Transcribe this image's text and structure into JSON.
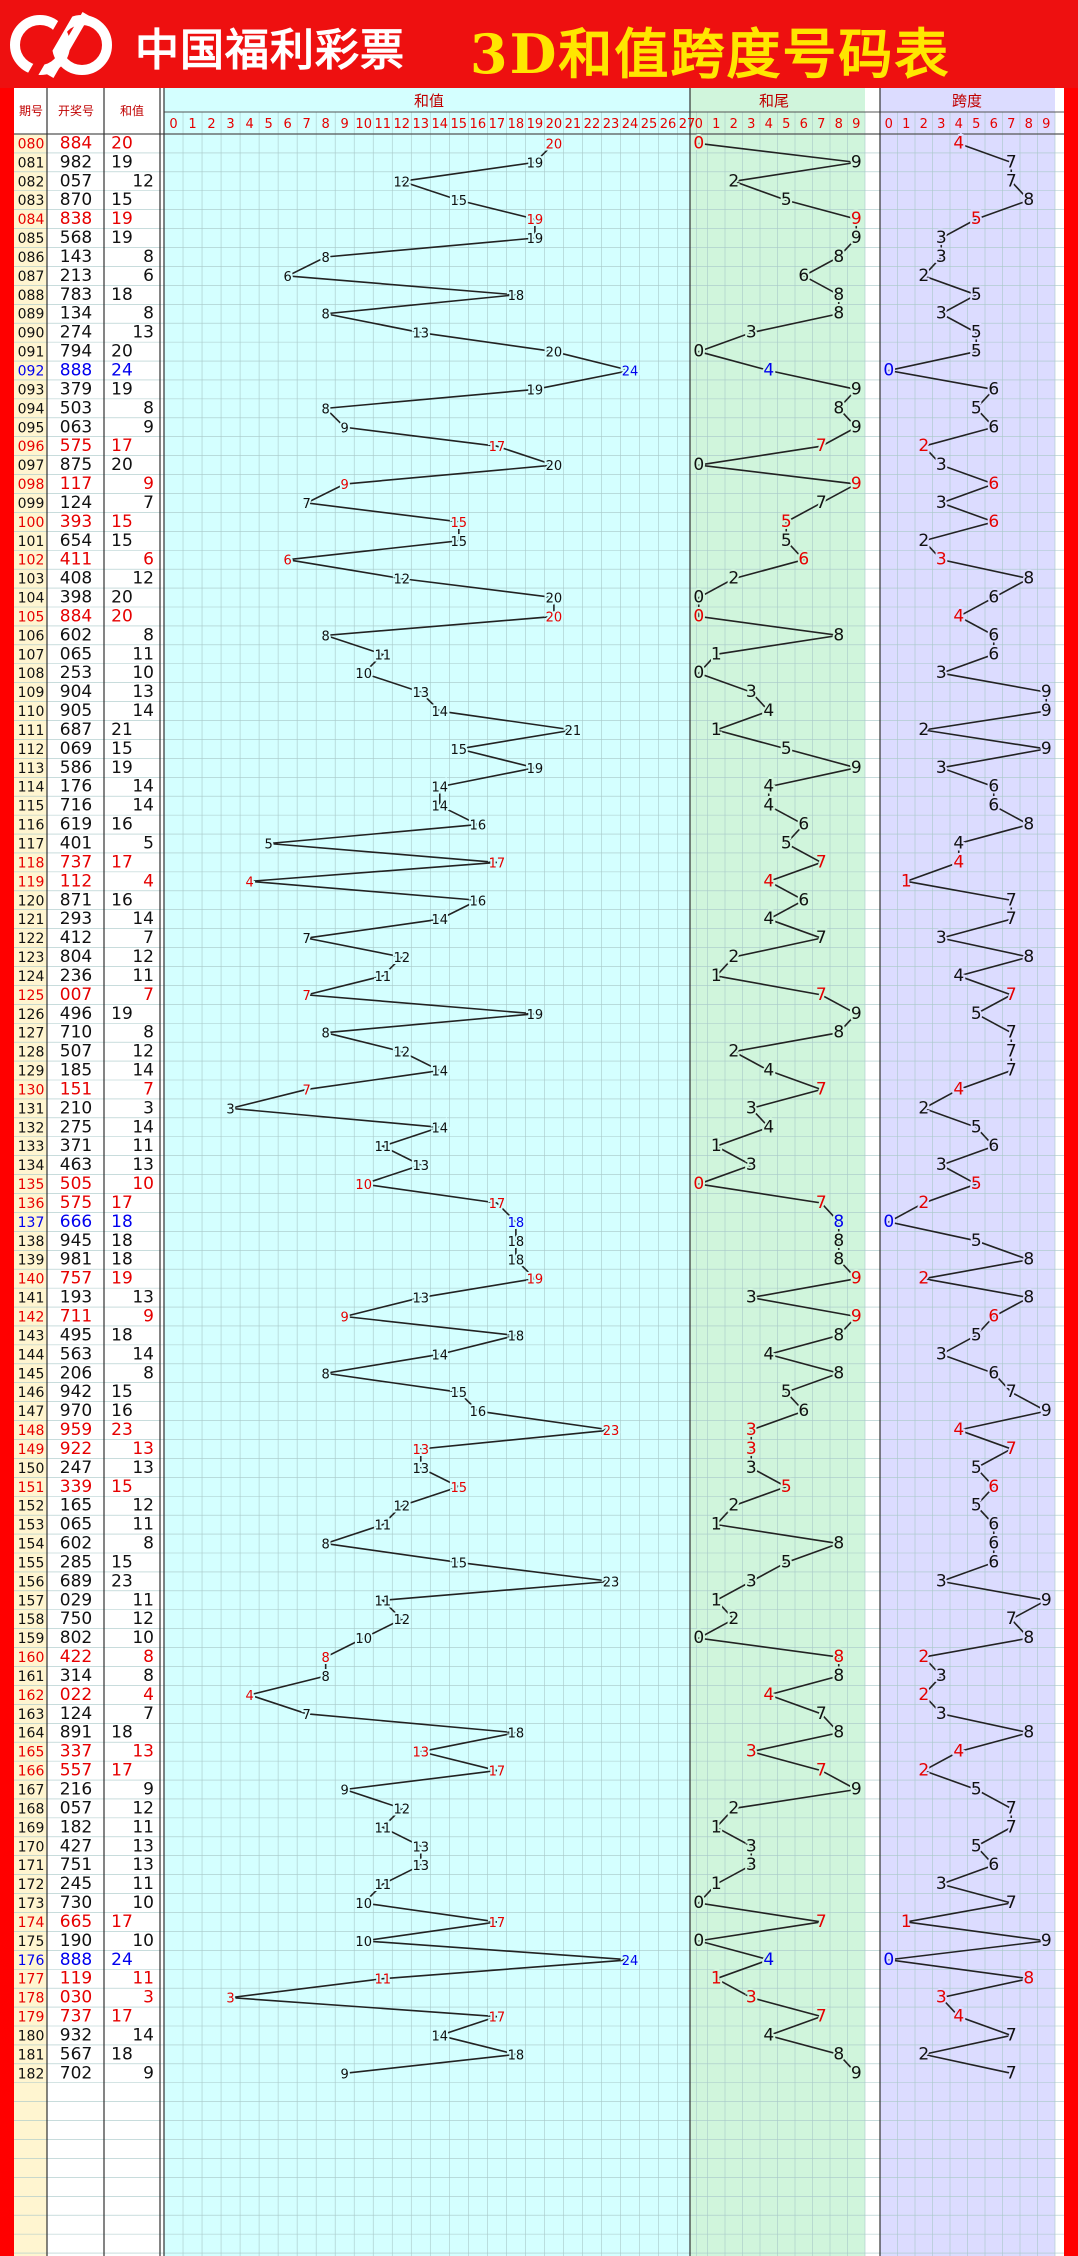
{
  "header": {
    "brand": "中国福利彩票",
    "title": "3D和值跨度号码表"
  },
  "columns": {
    "period": "期号",
    "draw": "开奖号",
    "sum": "和值",
    "sum_chart": "和值",
    "tail_chart": "和尾",
    "span_chart": "跨度"
  },
  "colors": {
    "red": "#e60000",
    "blue": "#0000ee",
    "black": "#111111",
    "period_bg": "#fff5d0",
    "draw_bg": "#ffffff",
    "sum_bg": "#d4ffff",
    "tail_bg": "#d0f5dc",
    "span_bg": "#dcdcff",
    "grid": "#a8c8c8"
  },
  "chart_data": {
    "type": "table",
    "sum_axis": [
      0,
      27
    ],
    "tail_axis": [
      0,
      9
    ],
    "span_axis": [
      0,
      9
    ],
    "rows": [
      {
        "p": "080",
        "n": "884",
        "s": 20,
        "t": 0,
        "k": 4,
        "c": "r"
      },
      {
        "p": "081",
        "n": "982",
        "s": 19,
        "t": 9,
        "k": 7,
        "c": "k"
      },
      {
        "p": "082",
        "n": "057",
        "s": 12,
        "t": 2,
        "k": 7,
        "c": "k"
      },
      {
        "p": "083",
        "n": "870",
        "s": 15,
        "t": 5,
        "k": 8,
        "c": "k"
      },
      {
        "p": "084",
        "n": "838",
        "s": 19,
        "t": 9,
        "k": 5,
        "c": "r"
      },
      {
        "p": "085",
        "n": "568",
        "s": 19,
        "t": 9,
        "k": 3,
        "c": "k"
      },
      {
        "p": "086",
        "n": "143",
        "s": 8,
        "t": 8,
        "k": 3,
        "c": "k"
      },
      {
        "p": "087",
        "n": "213",
        "s": 6,
        "t": 6,
        "k": 2,
        "c": "k"
      },
      {
        "p": "088",
        "n": "783",
        "s": 18,
        "t": 8,
        "k": 5,
        "c": "k"
      },
      {
        "p": "089",
        "n": "134",
        "s": 8,
        "t": 8,
        "k": 3,
        "c": "k"
      },
      {
        "p": "090",
        "n": "274",
        "s": 13,
        "t": 3,
        "k": 5,
        "c": "k"
      },
      {
        "p": "091",
        "n": "794",
        "s": 20,
        "t": 0,
        "k": 5,
        "c": "k"
      },
      {
        "p": "092",
        "n": "888",
        "s": 24,
        "t": 4,
        "k": 0,
        "c": "b"
      },
      {
        "p": "093",
        "n": "379",
        "s": 19,
        "t": 9,
        "k": 6,
        "c": "k"
      },
      {
        "p": "094",
        "n": "503",
        "s": 8,
        "t": 8,
        "k": 5,
        "c": "k"
      },
      {
        "p": "095",
        "n": "063",
        "s": 9,
        "t": 9,
        "k": 6,
        "c": "k"
      },
      {
        "p": "096",
        "n": "575",
        "s": 17,
        "t": 7,
        "k": 2,
        "c": "r"
      },
      {
        "p": "097",
        "n": "875",
        "s": 20,
        "t": 0,
        "k": 3,
        "c": "k"
      },
      {
        "p": "098",
        "n": "117",
        "s": 9,
        "t": 9,
        "k": 6,
        "c": "r"
      },
      {
        "p": "099",
        "n": "124",
        "s": 7,
        "t": 7,
        "k": 3,
        "c": "k"
      },
      {
        "p": "100",
        "n": "393",
        "s": 15,
        "t": 5,
        "k": 6,
        "c": "r"
      },
      {
        "p": "101",
        "n": "654",
        "s": 15,
        "t": 5,
        "k": 2,
        "c": "k"
      },
      {
        "p": "102",
        "n": "411",
        "s": 6,
        "t": 6,
        "k": 3,
        "c": "r"
      },
      {
        "p": "103",
        "n": "408",
        "s": 12,
        "t": 2,
        "k": 8,
        "c": "k"
      },
      {
        "p": "104",
        "n": "398",
        "s": 20,
        "t": 0,
        "k": 6,
        "c": "k"
      },
      {
        "p": "105",
        "n": "884",
        "s": 20,
        "t": 0,
        "k": 4,
        "c": "r"
      },
      {
        "p": "106",
        "n": "602",
        "s": 8,
        "t": 8,
        "k": 6,
        "c": "k"
      },
      {
        "p": "107",
        "n": "065",
        "s": 11,
        "t": 1,
        "k": 6,
        "c": "k"
      },
      {
        "p": "108",
        "n": "253",
        "s": 10,
        "t": 0,
        "k": 3,
        "c": "k"
      },
      {
        "p": "109",
        "n": "904",
        "s": 13,
        "t": 3,
        "k": 9,
        "c": "k"
      },
      {
        "p": "110",
        "n": "905",
        "s": 14,
        "t": 4,
        "k": 9,
        "c": "k"
      },
      {
        "p": "111",
        "n": "687",
        "s": 21,
        "t": 1,
        "k": 2,
        "c": "k"
      },
      {
        "p": "112",
        "n": "069",
        "s": 15,
        "t": 5,
        "k": 9,
        "c": "k"
      },
      {
        "p": "113",
        "n": "586",
        "s": 19,
        "t": 9,
        "k": 3,
        "c": "k"
      },
      {
        "p": "114",
        "n": "176",
        "s": 14,
        "t": 4,
        "k": 6,
        "c": "k"
      },
      {
        "p": "115",
        "n": "716",
        "s": 14,
        "t": 4,
        "k": 6,
        "c": "k"
      },
      {
        "p": "116",
        "n": "619",
        "s": 16,
        "t": 6,
        "k": 8,
        "c": "k"
      },
      {
        "p": "117",
        "n": "401",
        "s": 5,
        "t": 5,
        "k": 4,
        "c": "k"
      },
      {
        "p": "118",
        "n": "737",
        "s": 17,
        "t": 7,
        "k": 4,
        "c": "r"
      },
      {
        "p": "119",
        "n": "112",
        "s": 4,
        "t": 4,
        "k": 1,
        "c": "r"
      },
      {
        "p": "120",
        "n": "871",
        "s": 16,
        "t": 6,
        "k": 7,
        "c": "k"
      },
      {
        "p": "121",
        "n": "293",
        "s": 14,
        "t": 4,
        "k": 7,
        "c": "k"
      },
      {
        "p": "122",
        "n": "412",
        "s": 7,
        "t": 7,
        "k": 3,
        "c": "k"
      },
      {
        "p": "123",
        "n": "804",
        "s": 12,
        "t": 2,
        "k": 8,
        "c": "k"
      },
      {
        "p": "124",
        "n": "236",
        "s": 11,
        "t": 1,
        "k": 4,
        "c": "k"
      },
      {
        "p": "125",
        "n": "007",
        "s": 7,
        "t": 7,
        "k": 7,
        "c": "r"
      },
      {
        "p": "126",
        "n": "496",
        "s": 19,
        "t": 9,
        "k": 5,
        "c": "k"
      },
      {
        "p": "127",
        "n": "710",
        "s": 8,
        "t": 8,
        "k": 7,
        "c": "k"
      },
      {
        "p": "128",
        "n": "507",
        "s": 12,
        "t": 2,
        "k": 7,
        "c": "k"
      },
      {
        "p": "129",
        "n": "185",
        "s": 14,
        "t": 4,
        "k": 7,
        "c": "k"
      },
      {
        "p": "130",
        "n": "151",
        "s": 7,
        "t": 7,
        "k": 4,
        "c": "r"
      },
      {
        "p": "131",
        "n": "210",
        "s": 3,
        "t": 3,
        "k": 2,
        "c": "k"
      },
      {
        "p": "132",
        "n": "275",
        "s": 14,
        "t": 4,
        "k": 5,
        "c": "k"
      },
      {
        "p": "133",
        "n": "371",
        "s": 11,
        "t": 1,
        "k": 6,
        "c": "k"
      },
      {
        "p": "134",
        "n": "463",
        "s": 13,
        "t": 3,
        "k": 3,
        "c": "k"
      },
      {
        "p": "135",
        "n": "505",
        "s": 10,
        "t": 0,
        "k": 5,
        "c": "r"
      },
      {
        "p": "136",
        "n": "575",
        "s": 17,
        "t": 7,
        "k": 2,
        "c": "r"
      },
      {
        "p": "137",
        "n": "666",
        "s": 18,
        "t": 8,
        "k": 0,
        "c": "b"
      },
      {
        "p": "138",
        "n": "945",
        "s": 18,
        "t": 8,
        "k": 5,
        "c": "k"
      },
      {
        "p": "139",
        "n": "981",
        "s": 18,
        "t": 8,
        "k": 8,
        "c": "k"
      },
      {
        "p": "140",
        "n": "757",
        "s": 19,
        "t": 9,
        "k": 2,
        "c": "r"
      },
      {
        "p": "141",
        "n": "193",
        "s": 13,
        "t": 3,
        "k": 8,
        "c": "k"
      },
      {
        "p": "142",
        "n": "711",
        "s": 9,
        "t": 9,
        "k": 6,
        "c": "r"
      },
      {
        "p": "143",
        "n": "495",
        "s": 18,
        "t": 8,
        "k": 5,
        "c": "k"
      },
      {
        "p": "144",
        "n": "563",
        "s": 14,
        "t": 4,
        "k": 3,
        "c": "k"
      },
      {
        "p": "145",
        "n": "206",
        "s": 8,
        "t": 8,
        "k": 6,
        "c": "k"
      },
      {
        "p": "146",
        "n": "942",
        "s": 15,
        "t": 5,
        "k": 7,
        "c": "k"
      },
      {
        "p": "147",
        "n": "970",
        "s": 16,
        "t": 6,
        "k": 9,
        "c": "k"
      },
      {
        "p": "148",
        "n": "959",
        "s": 23,
        "t": 3,
        "k": 4,
        "c": "r"
      },
      {
        "p": "149",
        "n": "922",
        "s": 13,
        "t": 3,
        "k": 7,
        "c": "r"
      },
      {
        "p": "150",
        "n": "247",
        "s": 13,
        "t": 3,
        "k": 5,
        "c": "k"
      },
      {
        "p": "151",
        "n": "339",
        "s": 15,
        "t": 5,
        "k": 6,
        "c": "r"
      },
      {
        "p": "152",
        "n": "165",
        "s": 12,
        "t": 2,
        "k": 5,
        "c": "k"
      },
      {
        "p": "153",
        "n": "065",
        "s": 11,
        "t": 1,
        "k": 6,
        "c": "k"
      },
      {
        "p": "154",
        "n": "602",
        "s": 8,
        "t": 8,
        "k": 6,
        "c": "k"
      },
      {
        "p": "155",
        "n": "285",
        "s": 15,
        "t": 5,
        "k": 6,
        "c": "k"
      },
      {
        "p": "156",
        "n": "689",
        "s": 23,
        "t": 3,
        "k": 3,
        "c": "k"
      },
      {
        "p": "157",
        "n": "029",
        "s": 11,
        "t": 1,
        "k": 9,
        "c": "k"
      },
      {
        "p": "158",
        "n": "750",
        "s": 12,
        "t": 2,
        "k": 7,
        "c": "k"
      },
      {
        "p": "159",
        "n": "802",
        "s": 10,
        "t": 0,
        "k": 8,
        "c": "k"
      },
      {
        "p": "160",
        "n": "422",
        "s": 8,
        "t": 8,
        "k": 2,
        "c": "r"
      },
      {
        "p": "161",
        "n": "314",
        "s": 8,
        "t": 8,
        "k": 3,
        "c": "k"
      },
      {
        "p": "162",
        "n": "022",
        "s": 4,
        "t": 4,
        "k": 2,
        "c": "r"
      },
      {
        "p": "163",
        "n": "124",
        "s": 7,
        "t": 7,
        "k": 3,
        "c": "k"
      },
      {
        "p": "164",
        "n": "891",
        "s": 18,
        "t": 8,
        "k": 8,
        "c": "k"
      },
      {
        "p": "165",
        "n": "337",
        "s": 13,
        "t": 3,
        "k": 4,
        "c": "r"
      },
      {
        "p": "166",
        "n": "557",
        "s": 17,
        "t": 7,
        "k": 2,
        "c": "r"
      },
      {
        "p": "167",
        "n": "216",
        "s": 9,
        "t": 9,
        "k": 5,
        "c": "k"
      },
      {
        "p": "168",
        "n": "057",
        "s": 12,
        "t": 2,
        "k": 7,
        "c": "k"
      },
      {
        "p": "169",
        "n": "182",
        "s": 11,
        "t": 1,
        "k": 7,
        "c": "k"
      },
      {
        "p": "170",
        "n": "427",
        "s": 13,
        "t": 3,
        "k": 5,
        "c": "k"
      },
      {
        "p": "171",
        "n": "751",
        "s": 13,
        "t": 3,
        "k": 6,
        "c": "k"
      },
      {
        "p": "172",
        "n": "245",
        "s": 11,
        "t": 1,
        "k": 3,
        "c": "k"
      },
      {
        "p": "173",
        "n": "730",
        "s": 10,
        "t": 0,
        "k": 7,
        "c": "k"
      },
      {
        "p": "174",
        "n": "665",
        "s": 17,
        "t": 7,
        "k": 1,
        "c": "r"
      },
      {
        "p": "175",
        "n": "190",
        "s": 10,
        "t": 0,
        "k": 9,
        "c": "k"
      },
      {
        "p": "176",
        "n": "888",
        "s": 24,
        "t": 4,
        "k": 0,
        "c": "b"
      },
      {
        "p": "177",
        "n": "119",
        "s": 11,
        "t": 1,
        "k": 8,
        "c": "r"
      },
      {
        "p": "178",
        "n": "030",
        "s": 3,
        "t": 3,
        "k": 3,
        "c": "r"
      },
      {
        "p": "179",
        "n": "737",
        "s": 17,
        "t": 7,
        "k": 4,
        "c": "r"
      },
      {
        "p": "180",
        "n": "932",
        "s": 14,
        "t": 4,
        "k": 7,
        "c": "k"
      },
      {
        "p": "181",
        "n": "567",
        "s": 18,
        "t": 8,
        "k": 2,
        "c": "k"
      },
      {
        "p": "182",
        "n": "702",
        "s": 9,
        "t": 9,
        "k": 7,
        "c": "k"
      }
    ]
  }
}
